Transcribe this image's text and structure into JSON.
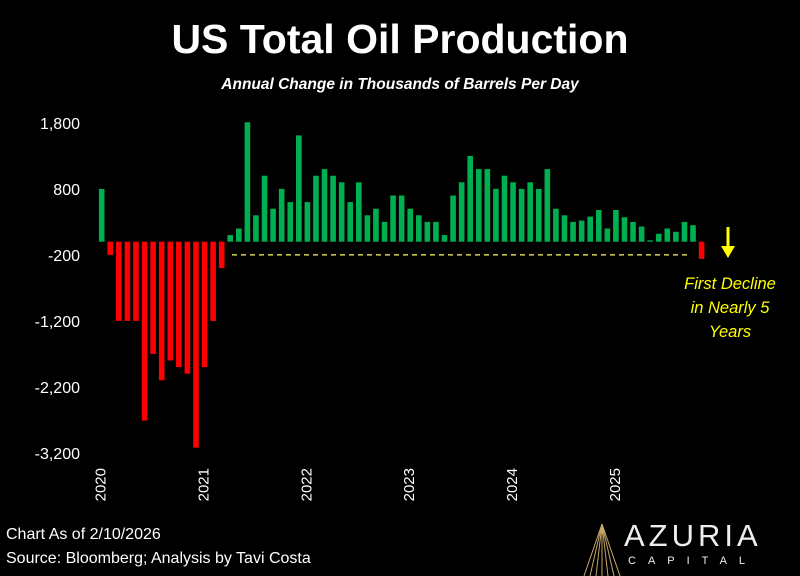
{
  "chart_data": {
    "type": "bar",
    "title": "US Total Oil Production",
    "subtitle": "Annual Change in Thousands of Barrels Per Day",
    "xlabel": "",
    "ylabel": "",
    "ylim": [
      -3400,
      2000
    ],
    "yticks": [
      "1,800",
      "800",
      "-200",
      "-1,200",
      "-2,200",
      "-3,200"
    ],
    "ytick_values": [
      1800,
      800,
      -200,
      -1200,
      -2200,
      -3200
    ],
    "xticks": [
      "2020",
      "2021",
      "2022",
      "2023",
      "2024",
      "2025"
    ],
    "grid": false,
    "colors": {
      "positive": "#00b050",
      "negative": "#ff0000",
      "reference": "#ffff66",
      "annotation": "#ffff00"
    },
    "values": [
      800,
      -200,
      -1200,
      -1200,
      -1200,
      -2710,
      -1700,
      -2100,
      -1800,
      -1900,
      -2000,
      -3120,
      -1900,
      -1200,
      -400,
      100,
      200,
      1810,
      400,
      1000,
      500,
      800,
      600,
      1610,
      600,
      1000,
      1100,
      1000,
      900,
      600,
      900,
      400,
      500,
      300,
      700,
      700,
      500,
      400,
      300,
      300,
      100,
      700,
      900,
      1300,
      1100,
      1100,
      800,
      1000,
      900,
      800,
      900,
      800,
      1100,
      500,
      400,
      300,
      320,
      380,
      480,
      200,
      480,
      370,
      300,
      230,
      20,
      120,
      200,
      150,
      300,
      250,
      -260
    ],
    "reference_line": -200,
    "annotation": [
      "First Decline",
      "in Nearly 5",
      "Years"
    ]
  },
  "footer": {
    "as_of": "Chart As of 2/10/2026",
    "source": "Source: Bloomberg; Analysis by Tavi Costa"
  },
  "logo": {
    "name": "AZURIA",
    "sub": "CAPITAL"
  }
}
